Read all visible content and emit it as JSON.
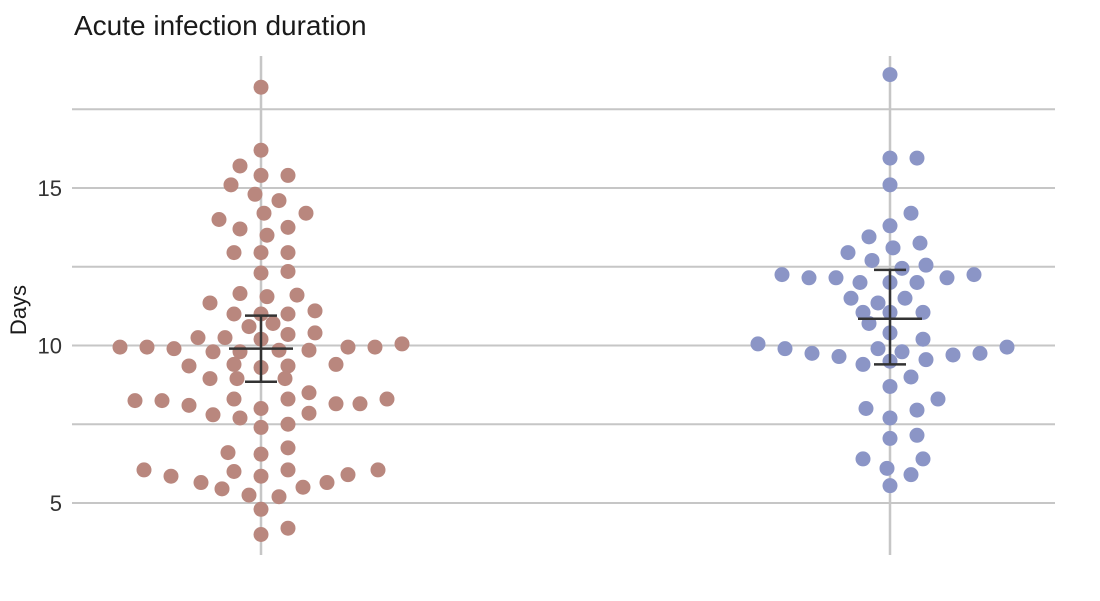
{
  "chart_data": {
    "type": "scatter",
    "title": "Acute infection duration",
    "xlabel": "",
    "ylabel": "Days",
    "ylim": [
      3.7,
      19.3
    ],
    "yticks": [
      5,
      10,
      15
    ],
    "grid": true,
    "series": [
      {
        "color": "#b9877e",
        "x_position": 0,
        "mean": 9.9,
        "error_low": 8.85,
        "error_high": 10.95,
        "points": [
          {
            "dx": 0,
            "y": 18.2
          },
          {
            "dx": 0,
            "y": 16.2
          },
          {
            "dx": -0.7,
            "y": 15.7
          },
          {
            "dx": 0,
            "y": 15.4
          },
          {
            "dx": 0.9,
            "y": 15.4
          },
          {
            "dx": -1.0,
            "y": 15.1
          },
          {
            "dx": -0.2,
            "y": 14.8
          },
          {
            "dx": 0.6,
            "y": 14.6
          },
          {
            "dx": 0.1,
            "y": 14.2
          },
          {
            "dx": 1.5,
            "y": 14.2
          },
          {
            "dx": -1.4,
            "y": 14.0
          },
          {
            "dx": 0.9,
            "y": 13.75
          },
          {
            "dx": -0.7,
            "y": 13.7
          },
          {
            "dx": 0.2,
            "y": 13.5
          },
          {
            "dx": 0,
            "y": 12.95
          },
          {
            "dx": -0.9,
            "y": 12.95
          },
          {
            "dx": 0.9,
            "y": 12.95
          },
          {
            "dx": 0,
            "y": 12.3
          },
          {
            "dx": 0.9,
            "y": 12.35
          },
          {
            "dx": -0.7,
            "y": 11.65
          },
          {
            "dx": 0.2,
            "y": 11.55
          },
          {
            "dx": 1.2,
            "y": 11.6
          },
          {
            "dx": -1.7,
            "y": 11.35
          },
          {
            "dx": -0.9,
            "y": 11.0
          },
          {
            "dx": 0,
            "y": 11.0
          },
          {
            "dx": 0.9,
            "y": 11.0
          },
          {
            "dx": 1.8,
            "y": 11.1
          },
          {
            "dx": 0.4,
            "y": 10.7
          },
          {
            "dx": -0.4,
            "y": 10.6
          },
          {
            "dx": -2.1,
            "y": 10.25
          },
          {
            "dx": -1.2,
            "y": 10.25
          },
          {
            "dx": 0,
            "y": 10.2
          },
          {
            "dx": 0.9,
            "y": 10.35
          },
          {
            "dx": 1.8,
            "y": 10.4
          },
          {
            "dx": -4.7,
            "y": 9.95
          },
          {
            "dx": -3.8,
            "y": 9.95
          },
          {
            "dx": -2.9,
            "y": 9.9
          },
          {
            "dx": -1.6,
            "y": 9.8
          },
          {
            "dx": -0.7,
            "y": 9.8
          },
          {
            "dx": 0.6,
            "y": 9.85
          },
          {
            "dx": 1.6,
            "y": 9.85
          },
          {
            "dx": 2.9,
            "y": 9.95
          },
          {
            "dx": 3.8,
            "y": 9.95
          },
          {
            "dx": 4.7,
            "y": 10.05
          },
          {
            "dx": -2.4,
            "y": 9.35
          },
          {
            "dx": -0.9,
            "y": 9.4
          },
          {
            "dx": 0,
            "y": 9.3
          },
          {
            "dx": 0.9,
            "y": 9.35
          },
          {
            "dx": 2.5,
            "y": 9.4
          },
          {
            "dx": -1.7,
            "y": 8.95
          },
          {
            "dx": -0.8,
            "y": 8.95
          },
          {
            "dx": 0.8,
            "y": 8.95
          },
          {
            "dx": -4.2,
            "y": 8.25
          },
          {
            "dx": -3.3,
            "y": 8.25
          },
          {
            "dx": -2.4,
            "y": 8.1
          },
          {
            "dx": -0.9,
            "y": 8.3
          },
          {
            "dx": 0.9,
            "y": 8.3
          },
          {
            "dx": 1.6,
            "y": 8.5
          },
          {
            "dx": 2.5,
            "y": 8.15
          },
          {
            "dx": 3.3,
            "y": 8.15
          },
          {
            "dx": 4.2,
            "y": 8.3
          },
          {
            "dx": -1.6,
            "y": 7.8
          },
          {
            "dx": -0.7,
            "y": 7.7
          },
          {
            "dx": 0,
            "y": 8.0
          },
          {
            "dx": 1.6,
            "y": 7.85
          },
          {
            "dx": 0,
            "y": 7.4
          },
          {
            "dx": 0.9,
            "y": 7.5
          },
          {
            "dx": 0.9,
            "y": 6.75
          },
          {
            "dx": -1.1,
            "y": 6.6
          },
          {
            "dx": 0,
            "y": 6.55
          },
          {
            "dx": -3.9,
            "y": 6.05
          },
          {
            "dx": -3.0,
            "y": 5.85
          },
          {
            "dx": -0.9,
            "y": 6.0
          },
          {
            "dx": 0,
            "y": 5.85
          },
          {
            "dx": 0.9,
            "y": 6.05
          },
          {
            "dx": 2.9,
            "y": 5.9
          },
          {
            "dx": 3.9,
            "y": 6.05
          },
          {
            "dx": -2.0,
            "y": 5.65
          },
          {
            "dx": -1.3,
            "y": 5.45
          },
          {
            "dx": -0.4,
            "y": 5.25
          },
          {
            "dx": 0.6,
            "y": 5.2
          },
          {
            "dx": 1.4,
            "y": 5.5
          },
          {
            "dx": 2.2,
            "y": 5.65
          },
          {
            "dx": 0,
            "y": 4.8
          },
          {
            "dx": 0.9,
            "y": 4.2
          },
          {
            "dx": 0,
            "y": 4.0
          }
        ]
      },
      {
        "color": "#8b95c6",
        "x_position": 1,
        "mean": 10.85,
        "error_low": 9.4,
        "error_high": 12.4,
        "points": [
          {
            "dx": 0,
            "y": 18.6
          },
          {
            "dx": 0,
            "y": 15.95
          },
          {
            "dx": 0.9,
            "y": 15.95
          },
          {
            "dx": 0,
            "y": 15.1
          },
          {
            "dx": 0.7,
            "y": 14.2
          },
          {
            "dx": 0,
            "y": 13.8
          },
          {
            "dx": -0.7,
            "y": 13.45
          },
          {
            "dx": -1.4,
            "y": 12.95
          },
          {
            "dx": 0.1,
            "y": 13.1
          },
          {
            "dx": 1.0,
            "y": 13.25
          },
          {
            "dx": -0.6,
            "y": 12.7
          },
          {
            "dx": 0.4,
            "y": 12.45
          },
          {
            "dx": 1.2,
            "y": 12.55
          },
          {
            "dx": -3.6,
            "y": 12.25
          },
          {
            "dx": -2.7,
            "y": 12.15
          },
          {
            "dx": -1.8,
            "y": 12.15
          },
          {
            "dx": -1.0,
            "y": 12.0
          },
          {
            "dx": 0,
            "y": 12.0
          },
          {
            "dx": 0.9,
            "y": 12.0
          },
          {
            "dx": 1.9,
            "y": 12.15
          },
          {
            "dx": 2.8,
            "y": 12.25
          },
          {
            "dx": -1.3,
            "y": 11.5
          },
          {
            "dx": -0.4,
            "y": 11.35
          },
          {
            "dx": 0.5,
            "y": 11.5
          },
          {
            "dx": -0.9,
            "y": 11.05
          },
          {
            "dx": 0,
            "y": 11.05
          },
          {
            "dx": 1.1,
            "y": 11.05
          },
          {
            "dx": -0.7,
            "y": 10.7
          },
          {
            "dx": 0,
            "y": 10.4
          },
          {
            "dx": -4.4,
            "y": 10.05
          },
          {
            "dx": -3.5,
            "y": 9.9
          },
          {
            "dx": -2.6,
            "y": 9.75
          },
          {
            "dx": -1.7,
            "y": 9.65
          },
          {
            "dx": -0.4,
            "y": 9.9
          },
          {
            "dx": 0.4,
            "y": 9.8
          },
          {
            "dx": 1.1,
            "y": 10.2
          },
          {
            "dx": 2.1,
            "y": 9.7
          },
          {
            "dx": 3.0,
            "y": 9.75
          },
          {
            "dx": 3.9,
            "y": 9.95
          },
          {
            "dx": -0.9,
            "y": 9.4
          },
          {
            "dx": 0,
            "y": 9.5
          },
          {
            "dx": 1.2,
            "y": 9.55
          },
          {
            "dx": 0.7,
            "y": 9.0
          },
          {
            "dx": 0,
            "y": 8.7
          },
          {
            "dx": 1.6,
            "y": 8.3
          },
          {
            "dx": -0.8,
            "y": 8.0
          },
          {
            "dx": 0.9,
            "y": 7.95
          },
          {
            "dx": 0,
            "y": 7.7
          },
          {
            "dx": 0,
            "y": 7.05
          },
          {
            "dx": 0.9,
            "y": 7.15
          },
          {
            "dx": -0.9,
            "y": 6.4
          },
          {
            "dx": 1.1,
            "y": 6.4
          },
          {
            "dx": -0.1,
            "y": 6.1
          },
          {
            "dx": 0.7,
            "y": 5.9
          },
          {
            "dx": 0,
            "y": 5.55
          }
        ]
      }
    ]
  }
}
